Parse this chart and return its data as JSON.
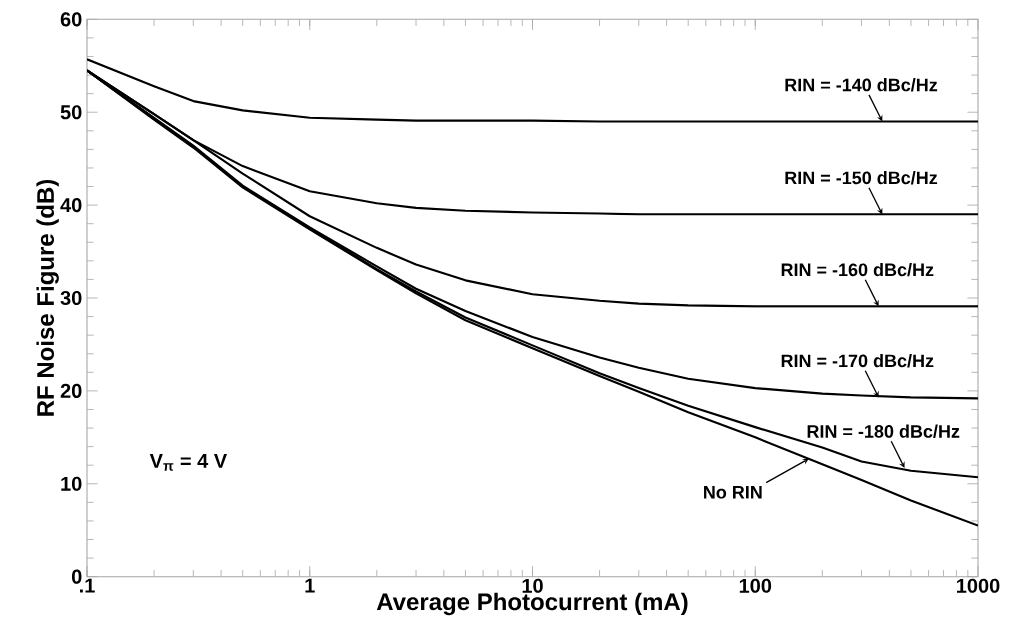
{
  "chart_data": {
    "type": "line",
    "xlabel": "Average Photocurrent (mA)",
    "ylabel": "RF Noise Figure (dB)",
    "log": "x",
    "xlim": [
      0.1,
      1000
    ],
    "xticks": [
      {
        "value": 0.1,
        "label": ".1"
      },
      1,
      10,
      100,
      1000
    ],
    "ylim": [
      0,
      60
    ],
    "yticks": [
      0,
      10,
      20,
      30,
      40,
      50,
      60
    ],
    "x": [
      0.1,
      0.2,
      0.3,
      0.5,
      1,
      2,
      3,
      5,
      10,
      20,
      30,
      50,
      100,
      200,
      300,
      500,
      1000
    ],
    "series": [
      {
        "color": "#000000",
        "values": [
          55.7,
          52.8,
          51.2,
          50.2,
          49.4,
          49.2,
          49.1,
          49.1,
          49.1,
          49.0,
          49.0,
          49.0,
          49.0,
          49.0,
          49.0,
          49.0,
          49.0
        ]
      },
      {
        "color": "#000000",
        "values": [
          54.5,
          49.8,
          47.0,
          44.2,
          41.5,
          40.2,
          39.7,
          39.4,
          39.2,
          39.1,
          39.0,
          39.0,
          39.0,
          39.0,
          39.0,
          39.0,
          39.0
        ]
      },
      {
        "color": "#000000",
        "values": [
          54.5,
          49.8,
          47.0,
          43.4,
          38.8,
          35.4,
          33.6,
          31.9,
          30.4,
          29.7,
          29.4,
          29.2,
          29.1,
          29.1,
          29.1,
          29.1,
          29.1
        ]
      },
      {
        "color": "#000000",
        "values": [
          54.5,
          49.4,
          46.4,
          42.1,
          37.6,
          33.4,
          31.0,
          28.6,
          25.8,
          23.6,
          22.5,
          21.3,
          20.3,
          19.7,
          19.5,
          19.3,
          19.2
        ]
      },
      {
        "color": "#000000",
        "values": [
          54.5,
          49.3,
          46.3,
          42.0,
          37.5,
          33.1,
          30.7,
          27.9,
          24.9,
          21.9,
          20.3,
          18.4,
          16.1,
          13.9,
          12.4,
          11.4,
          10.7
        ]
      },
      {
        "color": "#000000",
        "values": [
          54.5,
          49.2,
          46.2,
          41.9,
          37.4,
          33.0,
          30.5,
          27.6,
          24.6,
          21.6,
          19.9,
          17.7,
          15.0,
          12.1,
          10.4,
          8.2,
          5.5
        ]
      }
    ],
    "annotations": [
      {
        "text": "RIN = -140 dBc/Hz",
        "x": 372,
        "y": 49.0
      },
      {
        "text": "RIN = -150 dBc/Hz",
        "x": 372,
        "y": 39.0
      },
      {
        "text": "RIN = -160 dBc/Hz",
        "x": 358,
        "y": 29.1
      },
      {
        "text": "RIN = -170 dBc/Hz",
        "x": 358,
        "y": 19.3
      },
      {
        "text": "RIN = -180 dBc/Hz",
        "x": 468,
        "y": 11.7
      },
      {
        "text": "No RIN",
        "x": 174,
        "y": 12.7
      },
      "V$_{π}$ = 4 V"
    ],
    "marker": "none",
    "line_style": "solid",
    "grid": false
  }
}
